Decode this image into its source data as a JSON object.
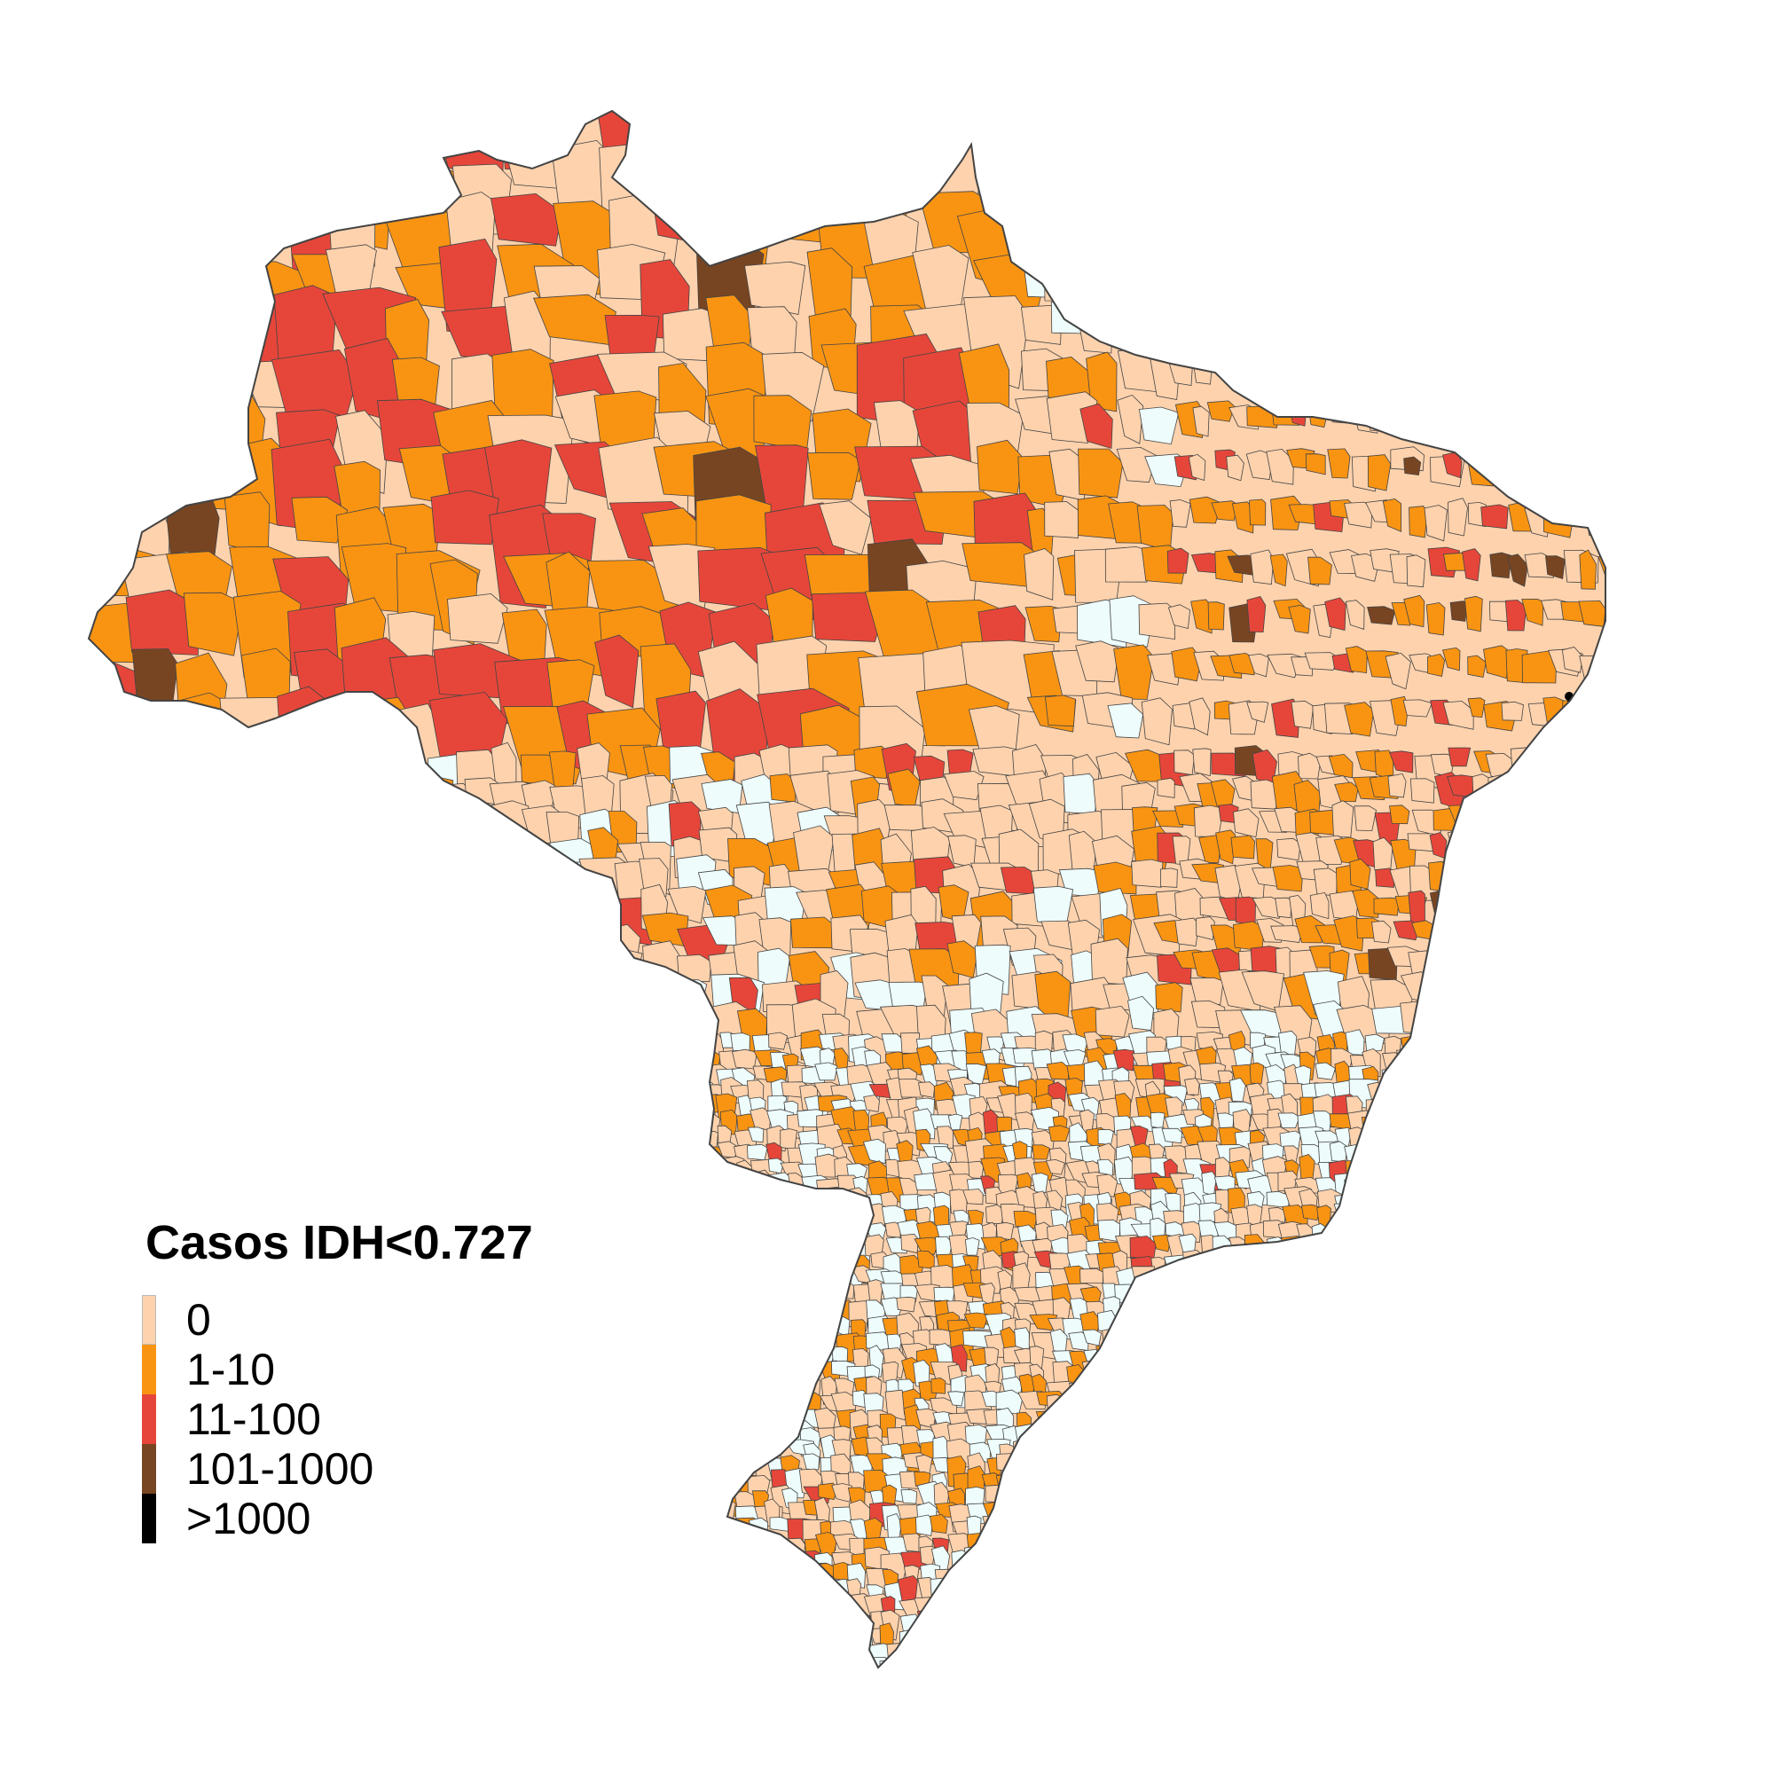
{
  "legend": {
    "title": "Casos IDH<0.727",
    "classes": [
      {
        "label": "0",
        "color": "#fdd2ad"
      },
      {
        "label": "1-10",
        "color": "#f99412"
      },
      {
        "label": "11-100",
        "color": "#e6463a"
      },
      {
        "label": "101-1000",
        "color": "#784522"
      },
      {
        "label": ">1000",
        "color": "#000000"
      }
    ]
  },
  "no_data_color": "#eefcfc",
  "border_color": "#444444"
}
